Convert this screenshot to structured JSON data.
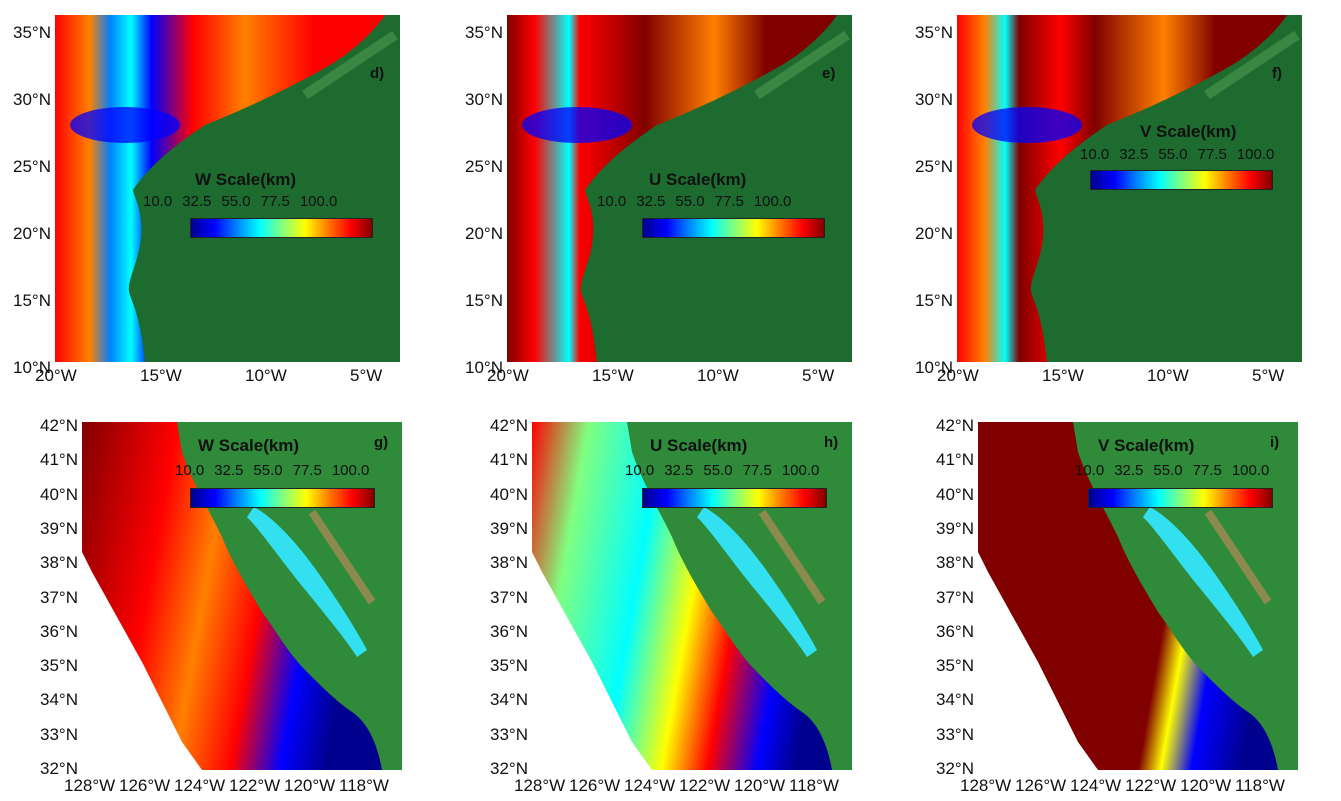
{
  "figure": {
    "colorscale": [
      "#00008f",
      "#0000ff",
      "#0080ff",
      "#00ffff",
      "#80ff80",
      "#ffff00",
      "#ff8000",
      "#ff0000",
      "#800000"
    ],
    "land_color": "#1d6b2f",
    "panels_top": [
      {
        "tag": "d)",
        "cb_title": "W Scale(km)"
      },
      {
        "tag": "e)",
        "cb_title": "U Scale(km)"
      },
      {
        "tag": "f)",
        "cb_title": "V Scale(km)"
      }
    ],
    "panels_bottom": [
      {
        "tag": "g)",
        "cb_title": "W Scale(km)"
      },
      {
        "tag": "h)",
        "cb_title": "U Scale(km)"
      },
      {
        "tag": "i)",
        "cb_title": "V Scale(km)"
      }
    ],
    "cb_ticks": [
      "10.0",
      "32.5",
      "55.0",
      "77.5",
      "100.0"
    ],
    "top_lat_labels": [
      "35°N",
      "30°N",
      "25°N",
      "20°N",
      "15°N",
      "10°N"
    ],
    "top_lon_labels": [
      "20°W",
      "15°W",
      "10°W",
      "5°W"
    ],
    "bottom_lat_labels": [
      "42°N",
      "41°N",
      "40°N",
      "39°N",
      "38°N",
      "37°N",
      "36°N",
      "35°N",
      "34°N",
      "33°N",
      "32°N"
    ],
    "bottom_lon_labels": [
      "128°W",
      "126°W",
      "124°W",
      "122°W",
      "120°W",
      "118°W"
    ]
  }
}
